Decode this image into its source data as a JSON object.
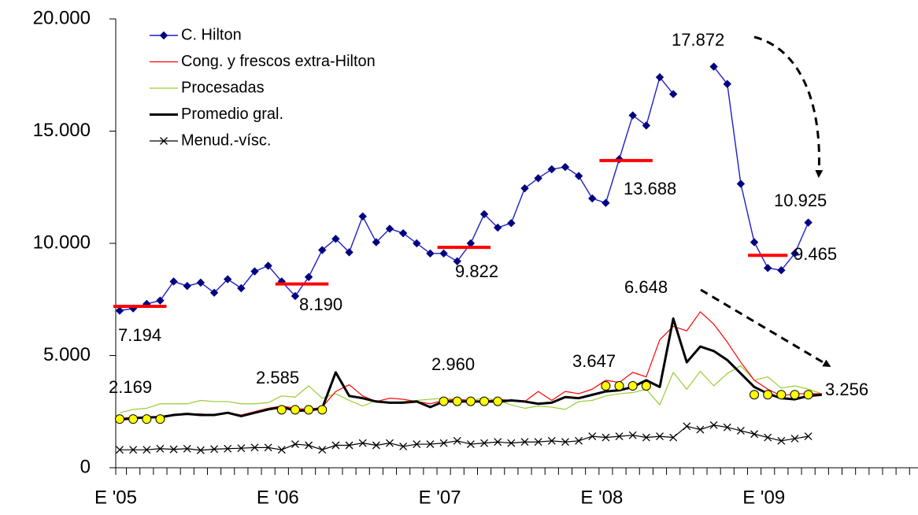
{
  "chart_data": {
    "type": "line",
    "categories": [
      "E '05",
      null,
      null,
      null,
      null,
      null,
      null,
      null,
      null,
      null,
      null,
      null,
      "E '06",
      null,
      null,
      null,
      null,
      null,
      null,
      null,
      null,
      null,
      null,
      null,
      "E '07",
      null,
      null,
      null,
      null,
      null,
      null,
      null,
      null,
      null,
      null,
      null,
      "E '08",
      null,
      null,
      null,
      null,
      null,
      null,
      null,
      null,
      null,
      null,
      null,
      "E '09",
      null,
      null,
      null,
      null,
      null,
      null,
      null,
      null,
      null,
      null,
      null
    ],
    "ylim": [
      0,
      20000
    ],
    "yticks": [
      0,
      {
        "value": 5000,
        "label": "5.000"
      },
      {
        "value": 10000,
        "label": "10.000"
      },
      {
        "value": 15000,
        "label": "15.000"
      },
      {
        "value": 20000,
        "label": "20.000"
      }
    ],
    "legend": "upper left",
    "series": [
      {
        "name": "C. Hilton",
        "color": "#1f1fc8",
        "marker": "diamond",
        "line_width": 1.4,
        "values": [
          7000,
          7100,
          7300,
          7450,
          8300,
          8100,
          8250,
          7800,
          8400,
          8000,
          8750,
          9000,
          8300,
          7650,
          8500,
          9700,
          10200,
          9600,
          11200,
          10050,
          10650,
          10450,
          10000,
          9550,
          9550,
          9200,
          10000,
          11300,
          10700,
          10900,
          12450,
          12900,
          13300,
          13400,
          13000,
          12000,
          11800,
          13750,
          15700,
          15250,
          17400,
          16650,
          null,
          null,
          17872,
          17100,
          12650,
          10050,
          8900,
          8800,
          9550,
          10925,
          null,
          null,
          null,
          null,
          null,
          null,
          null,
          null
        ],
        "value_labels": [
          null,
          null,
          null,
          null,
          null,
          null,
          null,
          null,
          null,
          null,
          null,
          null,
          null,
          null,
          null,
          null,
          null,
          null,
          null,
          null,
          null,
          null,
          null,
          null,
          null,
          null,
          null,
          null,
          null,
          null,
          null,
          null,
          null,
          null,
          null,
          null,
          null,
          null,
          null,
          null,
          null,
          null,
          null,
          null,
          "17.872",
          null,
          null,
          null,
          null,
          null,
          null,
          "10.925",
          null,
          null,
          null,
          null,
          null,
          null,
          null,
          null
        ]
      },
      {
        "name": "Cong. y frescos extra-Hilton",
        "color": "#ff0000",
        "marker": null,
        "line_width": 1.2,
        "values": [
          2200,
          2250,
          2250,
          2300,
          2350,
          2400,
          2400,
          2350,
          2450,
          2350,
          2500,
          2650,
          2750,
          2650,
          2600,
          2700,
          3400,
          3700,
          3200,
          2950,
          3100,
          3050,
          2950,
          2850,
          3000,
          3050,
          3000,
          2950,
          3050,
          3000,
          2950,
          3400,
          3000,
          3400,
          3300,
          3500,
          3900,
          3800,
          4250,
          4050,
          5700,
          6300,
          6100,
          6950,
          6400,
          5600,
          4700,
          3900,
          3500,
          3200,
          3300,
          3300,
          3300,
          null,
          null,
          null,
          null,
          null,
          null,
          null
        ]
      },
      {
        "name": "Procesadas",
        "color": "#99cc33",
        "marker": null,
        "line_width": 1.2,
        "values": [
          2450,
          2600,
          2650,
          2850,
          2850,
          2850,
          3000,
          2950,
          2950,
          2850,
          2850,
          2900,
          3200,
          3150,
          3650,
          3100,
          3300,
          3000,
          2750,
          3000,
          2900,
          2950,
          3000,
          3050,
          3100,
          3050,
          3000,
          3100,
          3000,
          2800,
          2650,
          2750,
          2700,
          2600,
          2950,
          3000,
          3200,
          3300,
          3350,
          3500,
          2800,
          4250,
          3500,
          4300,
          3650,
          4200,
          4550,
          3900,
          4050,
          3550,
          3650,
          3500,
          3300,
          null,
          null,
          null,
          null,
          null,
          null,
          null
        ]
      },
      {
        "name": "Promedio gral.",
        "color": "#000000",
        "marker": null,
        "line_width": 3,
        "values": [
          2150,
          2200,
          2250,
          2250,
          2350,
          2400,
          2350,
          2350,
          2450,
          2300,
          2450,
          2600,
          2700,
          2550,
          2550,
          2650,
          4250,
          3200,
          3100,
          2950,
          2900,
          2900,
          2950,
          2700,
          2950,
          2950,
          2950,
          2950,
          2950,
          3000,
          2950,
          2850,
          2900,
          3150,
          3100,
          3250,
          3400,
          3450,
          3600,
          3900,
          3600,
          6648,
          4700,
          5400,
          5200,
          4800,
          4200,
          3600,
          3300,
          3100,
          3050,
          3200,
          3250,
          null,
          null,
          null,
          null,
          null,
          null,
          null
        ],
        "value_labels": [
          null,
          null,
          null,
          null,
          null,
          null,
          null,
          null,
          null,
          null,
          null,
          null,
          null,
          null,
          null,
          null,
          null,
          null,
          null,
          null,
          null,
          null,
          null,
          null,
          null,
          null,
          null,
          null,
          null,
          null,
          null,
          null,
          null,
          null,
          null,
          null,
          null,
          null,
          null,
          null,
          null,
          "6.648",
          null,
          null,
          null,
          null,
          null,
          null,
          null,
          null,
          null,
          null,
          null,
          null,
          null,
          null,
          null,
          null,
          null,
          null
        ]
      },
      {
        "name": "Menud.-vísc.",
        "color": "#000000",
        "marker": "x",
        "line_width": 1.2,
        "values": [
          800,
          800,
          800,
          850,
          820,
          850,
          780,
          830,
          850,
          870,
          900,
          900,
          800,
          1050,
          1000,
          800,
          1000,
          1000,
          1100,
          1000,
          1100,
          950,
          1050,
          1050,
          1100,
          1200,
          1050,
          1100,
          1150,
          1100,
          1150,
          1150,
          1200,
          1150,
          1200,
          1400,
          1350,
          1400,
          1450,
          1350,
          1400,
          1350,
          1850,
          1700,
          1900,
          1800,
          1650,
          1500,
          1350,
          1200,
          1300,
          1400,
          null,
          null,
          null,
          null,
          null,
          null,
          null,
          null
        ]
      }
    ],
    "hilton_averages": {
      "color": "#ff0000",
      "items": [
        {
          "value": 7194,
          "label": "7.194",
          "from": 0,
          "to": 3
        },
        {
          "value": 8190,
          "label": "8.190",
          "from": 12,
          "to": 15
        },
        {
          "value": 9822,
          "label": "9.822",
          "from": 24,
          "to": 27
        },
        {
          "value": 13688,
          "label": "13.688",
          "from": 36,
          "to": 39
        },
        {
          "value": 9465,
          "label": "9.465",
          "from": 47,
          "to": 49
        }
      ]
    },
    "overall_averages": {
      "color": "#ffff00",
      "items": [
        {
          "value": 2169,
          "label": "2.169",
          "from": 0,
          "to": 3
        },
        {
          "value": 2585,
          "label": "2.585",
          "from": 12,
          "to": 15
        },
        {
          "value": 2960,
          "label": "2.960",
          "from": 24,
          "to": 28
        },
        {
          "value": 3647,
          "label": "3.647",
          "from": 36,
          "to": 39
        },
        {
          "value": 3256,
          "label": "3.256",
          "from": 47,
          "to": 51
        }
      ]
    }
  }
}
